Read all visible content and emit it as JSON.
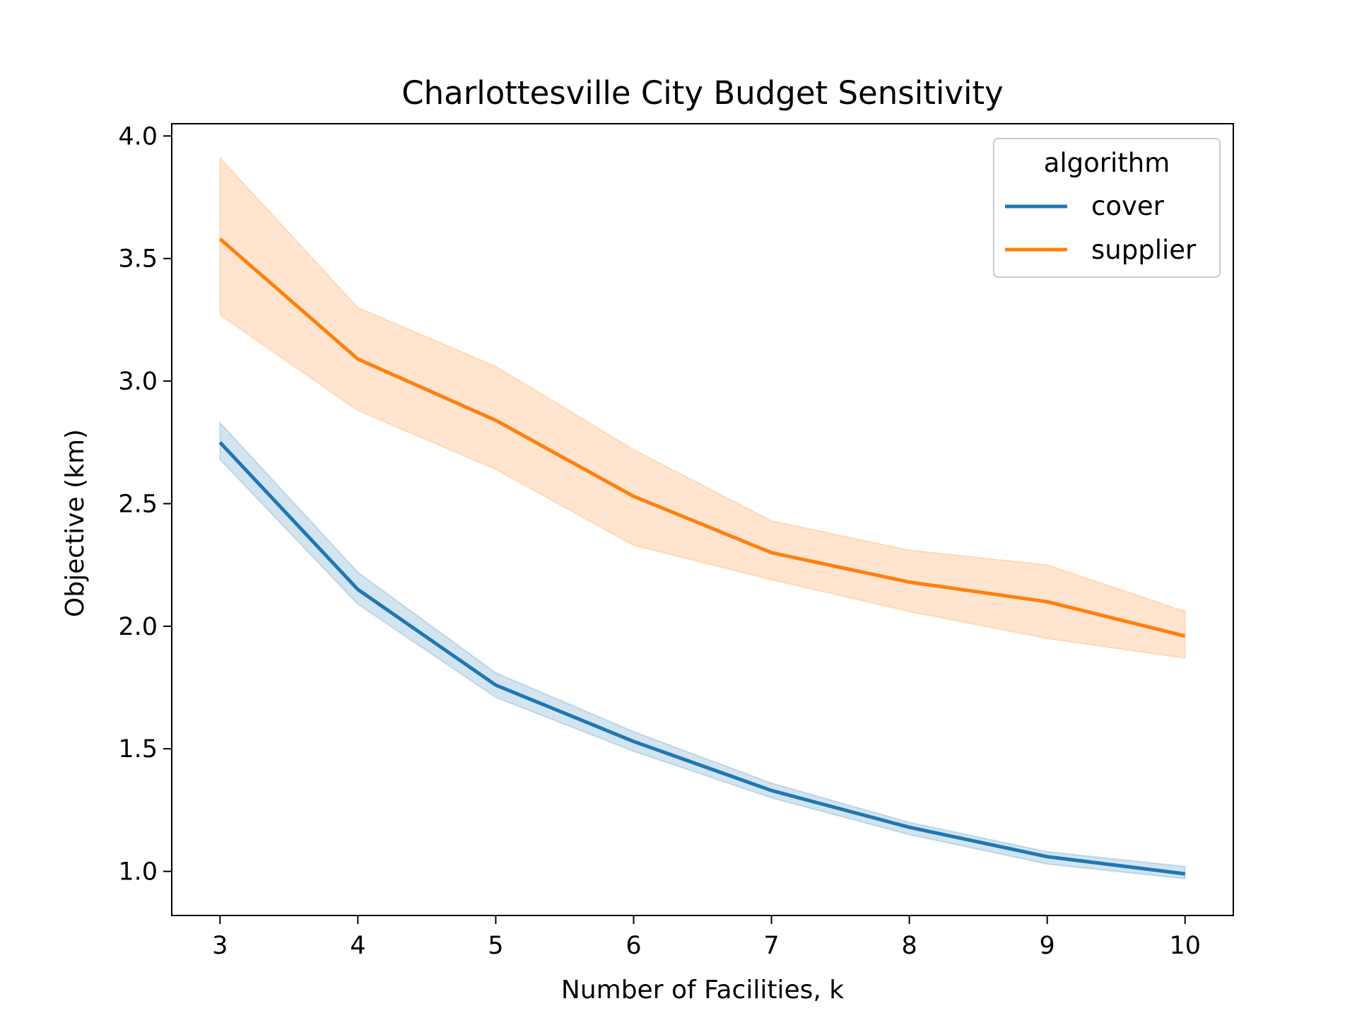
{
  "chart_data": {
    "type": "line",
    "title": "Charlottesville City Budget Sensitivity",
    "xlabel": "Number of Facilities, k",
    "ylabel": "Objective (km)",
    "x": [
      3,
      4,
      5,
      6,
      7,
      8,
      9,
      10
    ],
    "xlim": [
      2.65,
      10.35
    ],
    "ylim": [
      0.82,
      4.05
    ],
    "xticks": [
      "3",
      "4",
      "5",
      "6",
      "7",
      "8",
      "9",
      "10"
    ],
    "yticks": [
      "1.0",
      "1.5",
      "2.0",
      "2.5",
      "3.0",
      "3.5",
      "4.0"
    ],
    "grid": false,
    "legend_title": "algorithm",
    "legend_position": "top-right",
    "series": [
      {
        "name": "cover",
        "color": "#1f77b4",
        "values": [
          2.75,
          2.15,
          1.76,
          1.53,
          1.33,
          1.18,
          1.06,
          0.99
        ],
        "ci_lower": [
          2.68,
          2.09,
          1.71,
          1.49,
          1.3,
          1.15,
          1.03,
          0.97
        ],
        "ci_upper": [
          2.83,
          2.22,
          1.81,
          1.57,
          1.36,
          1.2,
          1.08,
          1.02
        ]
      },
      {
        "name": "supplier",
        "color": "#ff7f0e",
        "values": [
          3.58,
          3.09,
          2.84,
          2.53,
          2.3,
          2.18,
          2.1,
          1.96
        ],
        "ci_lower": [
          3.27,
          2.88,
          2.64,
          2.33,
          2.19,
          2.06,
          1.95,
          1.87
        ],
        "ci_upper": [
          3.91,
          3.3,
          3.06,
          2.72,
          2.43,
          2.31,
          2.25,
          2.06
        ]
      }
    ]
  }
}
